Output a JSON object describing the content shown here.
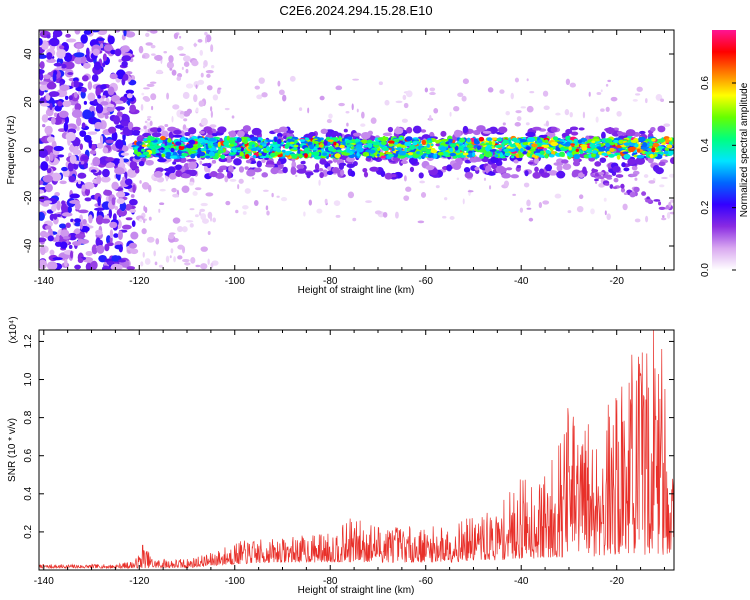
{
  "title": "C2E6.2024.294.15.28.E10",
  "chart_data": [
    {
      "type": "heatmap",
      "xlabel": "Height of straight line (km)",
      "ylabel": "Frequency (Hz)",
      "xlim": [
        -141,
        -8
      ],
      "ylim": [
        -50,
        50
      ],
      "xticks": [
        -140,
        -120,
        -100,
        -80,
        -60,
        -40,
        -20
      ],
      "yticks": [
        -40,
        -20,
        0,
        20,
        40
      ],
      "colorbar": {
        "label": "Normalized spectral amplitude",
        "range": [
          0.0,
          0.77
        ],
        "ticks": [
          0.0,
          0.2,
          0.4,
          0.6
        ],
        "colormap": [
          "#ffffff",
          "#d9a8f0",
          "#8a2be2",
          "#3300ff",
          "#0066ff",
          "#00e5ff",
          "#00ff80",
          "#66ff00",
          "#ffff00",
          "#ff8000",
          "#ff0000",
          "#ff1493"
        ]
      },
      "features": [
        {
          "region": "x -141 to -121, y -50 to 50",
          "amplitude": "0.05-0.25"
        },
        {
          "region": "x -120 to -104, y -50 to 50",
          "amplitude": "0.02-0.08"
        },
        {
          "region": "band x -121 to -8, y -5 to 8",
          "amplitude": "0.2-0.77"
        }
      ]
    },
    {
      "type": "line",
      "xlabel": "Height of straight line (km)",
      "ylabel": "SNR (10 * v/v)",
      "y_multiplier": "(x10⁴)",
      "xlim": [
        -141,
        -8
      ],
      "ylim": [
        0,
        1.26
      ],
      "xticks": [
        -140,
        -120,
        -100,
        -80,
        -60,
        -40,
        -20
      ],
      "yticks": [
        0.2,
        0.4,
        0.6,
        0.8,
        1.0,
        1.2
      ],
      "color": "#e8302a",
      "envelope": {
        "x": [
          -141,
          -125,
          -121,
          -119,
          -117,
          -110,
          -105,
          -100,
          -90,
          -80,
          -75,
          -70,
          -60,
          -55,
          -50,
          -45,
          -40,
          -35,
          -30,
          -25,
          -20,
          -17,
          -14,
          -12,
          -10,
          -8
        ],
        "min": [
          0.01,
          0.01,
          0.01,
          0.01,
          0.01,
          0.01,
          0.02,
          0.03,
          0.04,
          0.04,
          0.04,
          0.04,
          0.04,
          0.04,
          0.05,
          0.05,
          0.06,
          0.06,
          0.07,
          0.07,
          0.08,
          0.08,
          0.08,
          0.08,
          0.08,
          0.08
        ],
        "max": [
          0.03,
          0.03,
          0.05,
          0.13,
          0.06,
          0.06,
          0.09,
          0.15,
          0.17,
          0.2,
          0.27,
          0.25,
          0.22,
          0.25,
          0.28,
          0.32,
          0.5,
          0.5,
          0.85,
          0.78,
          0.95,
          1.13,
          1.2,
          1.26,
          1.02,
          0.6
        ]
      },
      "peaks": [
        {
          "x": -119.3,
          "y": 0.13
        },
        {
          "x": -75.8,
          "y": 0.27
        },
        {
          "x": -30.2,
          "y": 0.85
        },
        {
          "x": -16.8,
          "y": 1.13
        },
        {
          "x": -12.3,
          "y": 1.26
        },
        {
          "x": -10.6,
          "y": 1.16
        }
      ]
    }
  ]
}
